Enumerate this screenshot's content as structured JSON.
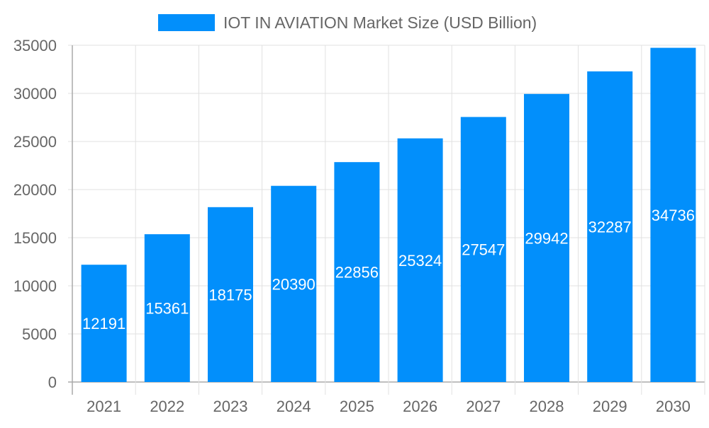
{
  "chart_data": {
    "type": "bar",
    "categories": [
      "2021",
      "2022",
      "2023",
      "2024",
      "2025",
      "2026",
      "2027",
      "2028",
      "2029",
      "2030"
    ],
    "series": [
      {
        "name": "IOT IN AVIATION Market Size (USD Billion)",
        "values": [
          12191,
          15361,
          18175,
          20390,
          22856,
          25324,
          27547,
          29942,
          32287,
          34736
        ]
      }
    ],
    "y_ticks": [
      "0",
      "5000",
      "10000",
      "15000",
      "20000",
      "25000",
      "30000",
      "35000"
    ],
    "ylim": [
      0,
      35000
    ],
    "grid": true,
    "legend_position": "top",
    "data_labels": true,
    "colors": {
      "bar": "#028ffb",
      "text": "#666666",
      "grid": "#e0e0e0",
      "axis": "#aaaaaa",
      "label": "#ffffff"
    }
  }
}
